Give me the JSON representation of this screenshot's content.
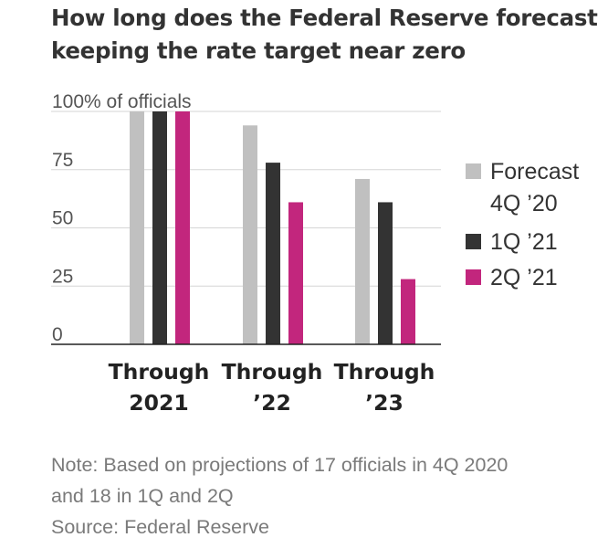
{
  "title_lines": [
    "How long does the Federal Reserve forecast",
    "keeping the rate target near zero"
  ],
  "notes": {
    "note_lines": [
      "Note: Based on projections of 17 officials in 4Q 2020",
      "and 18 in 1Q and 2Q"
    ],
    "source": "Source: Federal Reserve"
  },
  "chart_data": {
    "type": "bar",
    "title": "How long does the Federal Reserve forecast keeping the rate target near zero",
    "y_unit_label": "100% of officials",
    "yticks": [
      0,
      25,
      50,
      75,
      100
    ],
    "ytick_labels": [
      "0",
      "25",
      "50",
      "75",
      "100% of officials"
    ],
    "ylim": [
      0,
      100
    ],
    "grid": true,
    "legend_position": "right",
    "categories": [
      [
        "Through",
        "2021"
      ],
      [
        "Through",
        "’22"
      ],
      [
        "Through",
        "’23"
      ]
    ],
    "series": [
      {
        "name": [
          "Forecast",
          "4Q ’20"
        ],
        "color": "#c0c0c0",
        "values": [
          100,
          94,
          71
        ]
      },
      {
        "name": [
          "1Q ’21"
        ],
        "color": "#333333",
        "values": [
          100,
          78,
          61
        ]
      },
      {
        "name": [
          "2Q ’21"
        ],
        "color": "#c2267d",
        "values": [
          100,
          61,
          28
        ]
      }
    ]
  }
}
